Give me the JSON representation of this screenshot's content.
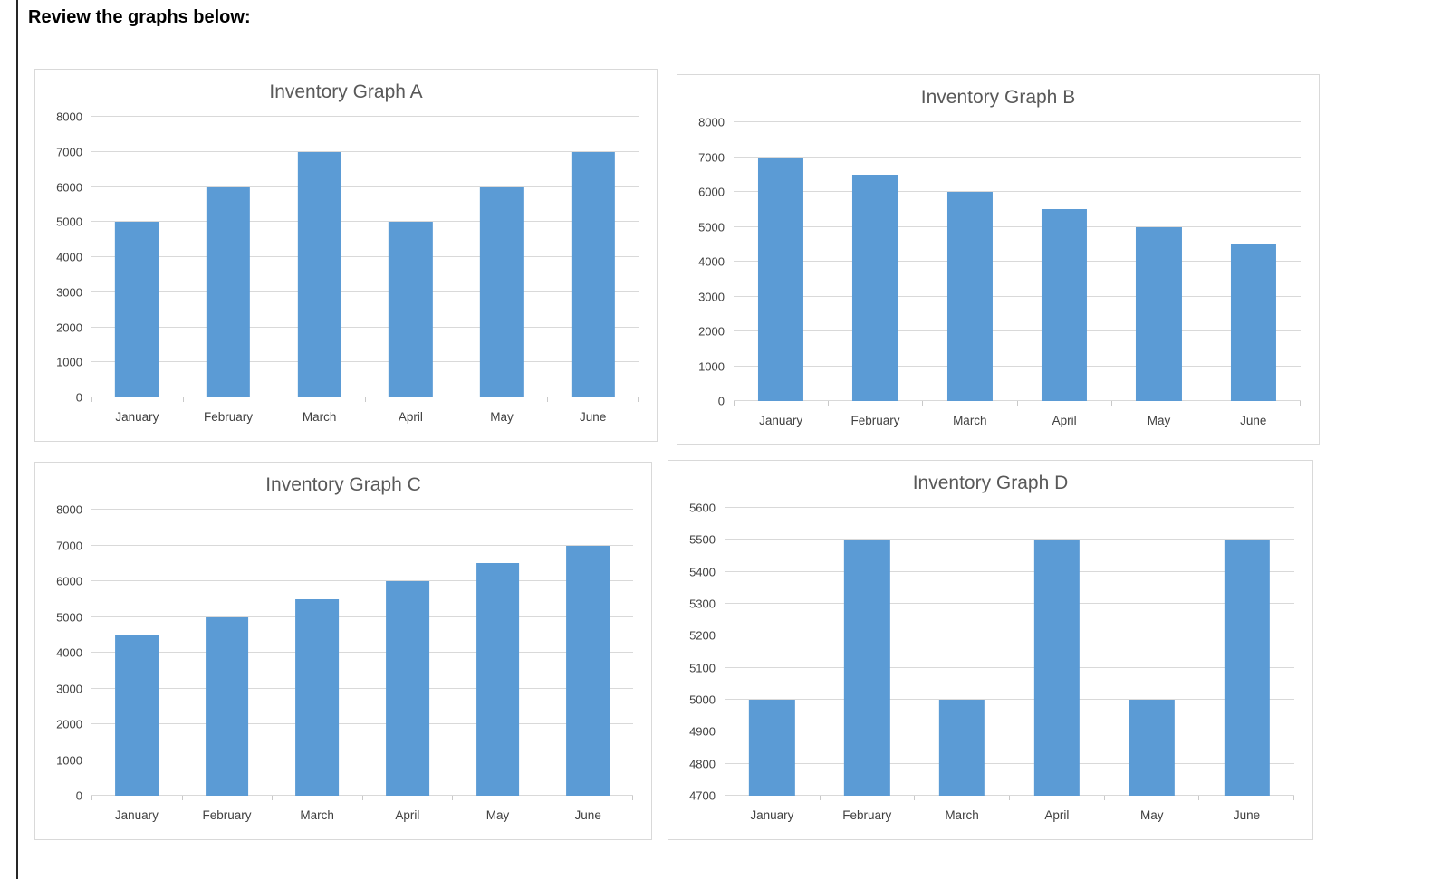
{
  "page": {
    "header": "Review the graphs below:"
  },
  "colors": {
    "bar": "#5b9bd5",
    "gridline": "#d9d9d9",
    "axis_text": "#404040",
    "title_text": "#595959",
    "panel_border": "#d9d9d9",
    "left_rule": "#262626"
  },
  "chart_data": [
    {
      "type": "bar",
      "title": "Inventory Graph A",
      "categories": [
        "January",
        "February",
        "March",
        "April",
        "May",
        "June"
      ],
      "values": [
        5000,
        6000,
        7000,
        5000,
        6000,
        7000
      ],
      "xlabel": "",
      "ylabel": "",
      "ylim": [
        0,
        8000
      ],
      "ytick_step": 1000,
      "grid": true,
      "legend": "none"
    },
    {
      "type": "bar",
      "title": "Inventory Graph B",
      "categories": [
        "January",
        "February",
        "March",
        "April",
        "May",
        "June"
      ],
      "values": [
        7000,
        6500,
        6000,
        5500,
        5000,
        4500
      ],
      "xlabel": "",
      "ylabel": "",
      "ylim": [
        0,
        8000
      ],
      "ytick_step": 1000,
      "grid": true,
      "legend": "none"
    },
    {
      "type": "bar",
      "title": "Inventory Graph C",
      "categories": [
        "January",
        "February",
        "March",
        "April",
        "May",
        "June"
      ],
      "values": [
        4500,
        5000,
        5500,
        6000,
        6500,
        7000
      ],
      "xlabel": "",
      "ylabel": "",
      "ylim": [
        0,
        8000
      ],
      "ytick_step": 1000,
      "grid": true,
      "legend": "none"
    },
    {
      "type": "bar",
      "title": "Inventory Graph D",
      "categories": [
        "January",
        "February",
        "March",
        "April",
        "May",
        "June"
      ],
      "values": [
        5000,
        5500,
        5000,
        5500,
        5000,
        5500
      ],
      "xlabel": "",
      "ylabel": "",
      "ylim": [
        4700,
        5600
      ],
      "ytick_step": 100,
      "grid": true,
      "legend": "none"
    }
  ]
}
